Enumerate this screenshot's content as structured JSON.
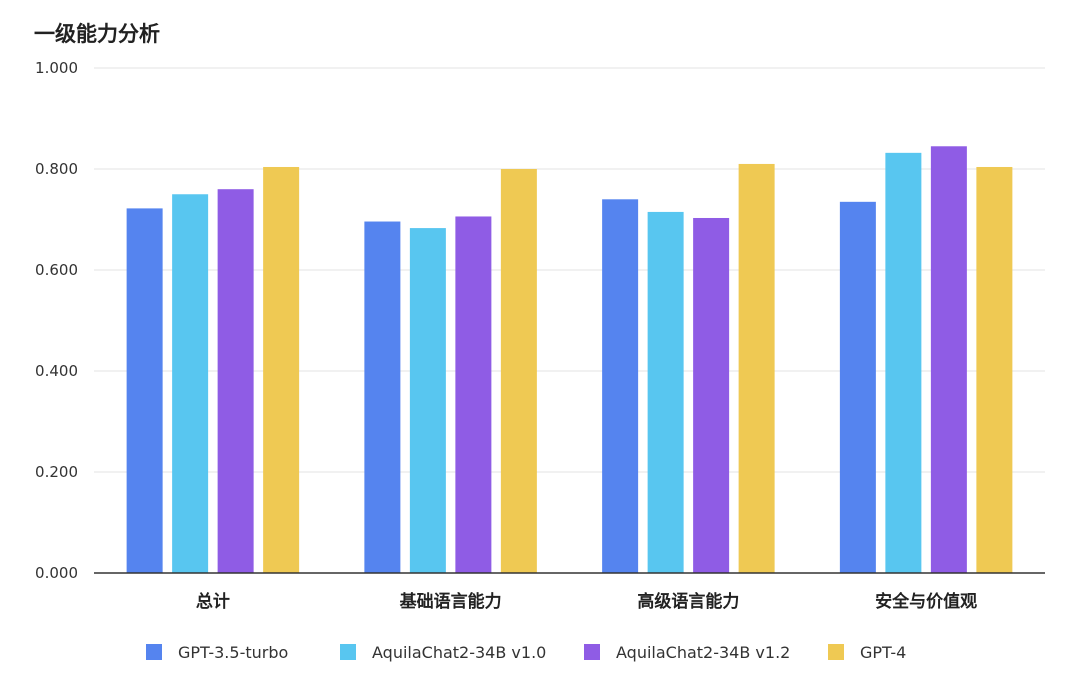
{
  "chart_data": {
    "type": "bar",
    "title": "一级能力分析",
    "xlabel": "",
    "ylabel": "",
    "ylim": [
      0,
      1.0
    ],
    "yticks": [
      "0.000",
      "0.200",
      "0.400",
      "0.600",
      "0.800",
      "1.000"
    ],
    "ytick_values": [
      0,
      0.2,
      0.4,
      0.6,
      0.8,
      1.0
    ],
    "grid": true,
    "legend_position": "bottom",
    "categories": [
      "总计",
      "基础语言能力",
      "高级语言能力",
      "安全与价值观"
    ],
    "series": [
      {
        "name": "GPT-3.5-turbo",
        "color": "#5584EF",
        "values": [
          0.722,
          0.696,
          0.74,
          0.735
        ]
      },
      {
        "name": "AquilaChat2-34B v1.0",
        "color": "#58C6F0",
        "values": [
          0.75,
          0.683,
          0.715,
          0.832
        ]
      },
      {
        "name": "AquilaChat2-34B v1.2",
        "color": "#8F5CE5",
        "values": [
          0.76,
          0.706,
          0.703,
          0.845
        ]
      },
      {
        "name": "GPT-4",
        "color": "#EFC953",
        "values": [
          0.804,
          0.8,
          0.81,
          0.804
        ]
      }
    ]
  }
}
